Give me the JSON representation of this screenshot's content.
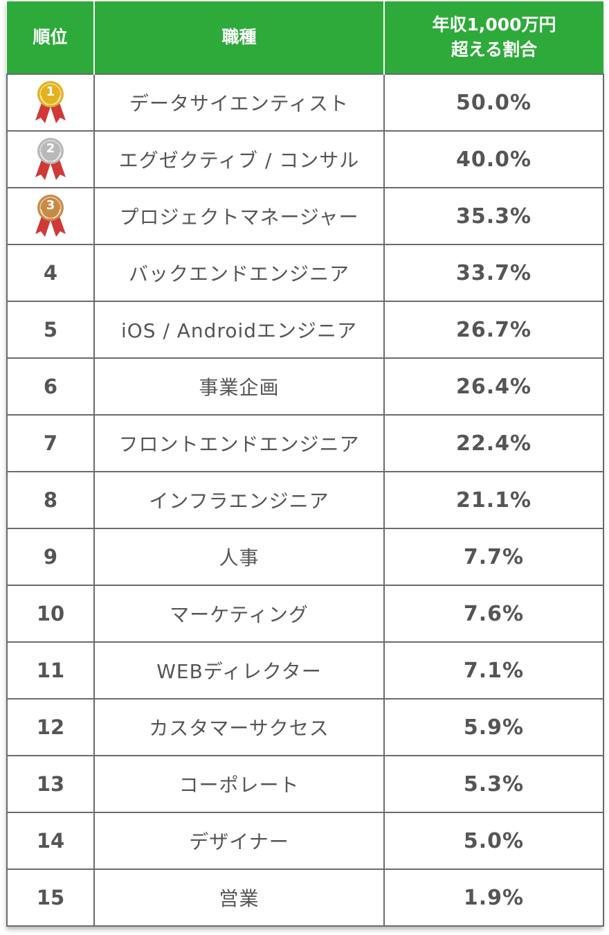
{
  "colors": {
    "header_bg": "#2eaa3a",
    "border": "#6b6b6b",
    "text": "#555555",
    "ribbon": "#cf3a36",
    "gold": "#e5b21f",
    "silver": "#b8b8b8",
    "bronze": "#c98a45"
  },
  "header": {
    "rank": "順位",
    "job": "職種",
    "pct_line1": "年収1,000万円",
    "pct_line2": "超える割合"
  },
  "rows": [
    {
      "rank": "1",
      "medal": "gold-medal-icon",
      "job": "データサイエンティスト",
      "pct": "50.0%"
    },
    {
      "rank": "2",
      "medal": "silver-medal-icon",
      "job": "エグゼクティブ / コンサル",
      "pct": "40.0%"
    },
    {
      "rank": "3",
      "medal": "bronze-medal-icon",
      "job": "プロジェクトマネージャー",
      "pct": "35.3%"
    },
    {
      "rank": "4",
      "job": "バックエンドエンジニア",
      "pct": "33.7%"
    },
    {
      "rank": "5",
      "job": "iOS / Androidエンジニア",
      "pct": "26.7%"
    },
    {
      "rank": "6",
      "job": "事業企画",
      "pct": "26.4%"
    },
    {
      "rank": "7",
      "job": "フロントエンドエンジニア",
      "pct": "22.4%"
    },
    {
      "rank": "8",
      "job": "インフラエンジニア",
      "pct": "21.1%"
    },
    {
      "rank": "9",
      "job": "人事",
      "pct": "7.7%"
    },
    {
      "rank": "10",
      "job": "マーケティング",
      "pct": "7.6%"
    },
    {
      "rank": "11",
      "job": "WEBディレクター",
      "pct": "7.1%"
    },
    {
      "rank": "12",
      "job": "カスタマーサクセス",
      "pct": "5.9%"
    },
    {
      "rank": "13",
      "job": "コーポレート",
      "pct": "5.3%"
    },
    {
      "rank": "14",
      "job": "デザイナー",
      "pct": "5.0%"
    },
    {
      "rank": "15",
      "job": "営業",
      "pct": "1.9%"
    }
  ]
}
